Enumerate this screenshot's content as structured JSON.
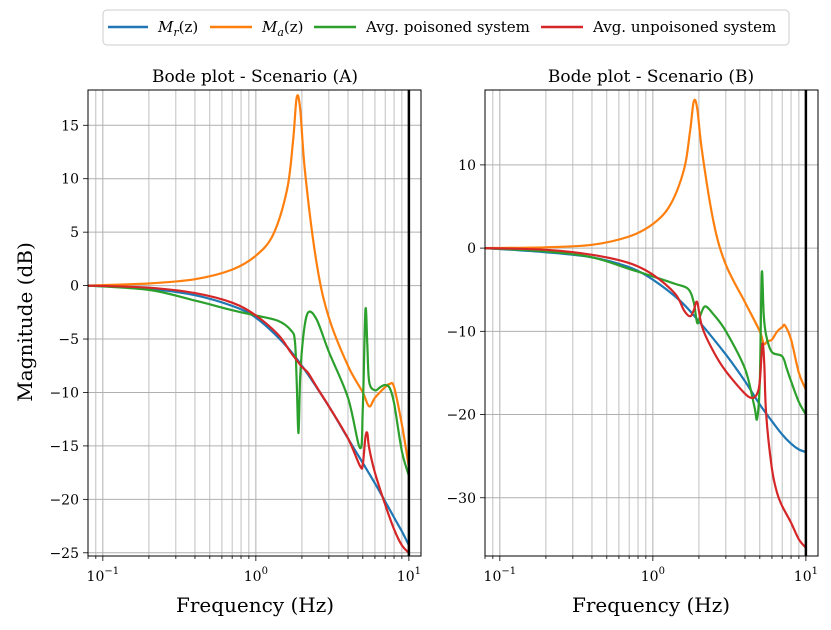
{
  "legend": {
    "entries": [
      {
        "label": "M",
        "sub": "r",
        "suffix": "(z)",
        "color": "#1f77b4"
      },
      {
        "label": "M",
        "sub": "a",
        "suffix": "(z)",
        "color": "#ff7f0e"
      },
      {
        "label": "Avg. poisoned system",
        "color": "#2ca02c"
      },
      {
        "label": "Avg. unpoisoned system",
        "color": "#d62728"
      }
    ]
  },
  "chart_data": [
    {
      "type": "line",
      "title": "Bode plot - Scenario (A)",
      "xlabel": "Frequency (Hz)",
      "ylabel": "Magnitude (dB)",
      "xscale": "log",
      "xlim": [
        0.08,
        12
      ],
      "ylim": [
        -25.3,
        18.3
      ],
      "yticks": [
        15,
        10,
        5,
        0,
        -5,
        -10,
        -15,
        -20,
        -25
      ],
      "ytick_labels": [
        "15",
        "10",
        "5",
        "0",
        "−5",
        "−10",
        "−15",
        "−20",
        "−25"
      ],
      "xticks": [
        {
          "value": 0.1,
          "base": "10",
          "exp": "−1"
        },
        {
          "value": 1,
          "base": "10",
          "exp": "0"
        },
        {
          "value": 10,
          "base": "10",
          "exp": "1"
        }
      ],
      "vline": 10,
      "series": [
        {
          "name": "Mr(z)",
          "color": "#1f77b4",
          "x": [
            0.08,
            0.2,
            0.4,
            0.7,
            1.0,
            1.5,
            2.0,
            3.0,
            4.0,
            5.0,
            6.0,
            7.0,
            8.0,
            9.0,
            10.0
          ],
          "y": [
            0,
            -0.3,
            -0.9,
            -1.9,
            -3.0,
            -5.3,
            -7.5,
            -11.3,
            -14.3,
            -16.6,
            -18.5,
            -20.2,
            -21.7,
            -23.0,
            -24.3
          ]
        },
        {
          "name": "Ma(z)",
          "color": "#ff7f0e",
          "x": [
            0.08,
            0.2,
            0.4,
            0.7,
            1.0,
            1.3,
            1.6,
            1.75,
            1.85,
            1.95,
            2.1,
            2.5,
            3.0,
            4.0,
            5.0,
            5.5,
            6.0,
            7.0,
            7.5,
            8.0,
            9.0,
            10.0
          ],
          "y": [
            0,
            0.2,
            0.6,
            1.5,
            2.8,
            4.8,
            9.0,
            13.5,
            17.6,
            16.5,
            10.5,
            2.0,
            -3.0,
            -7.5,
            -10.0,
            -11.3,
            -10.5,
            -9.5,
            -9.2,
            -9.5,
            -13.0,
            -17.0
          ]
        },
        {
          "name": "Avg. poisoned system",
          "color": "#2ca02c",
          "x": [
            0.08,
            0.2,
            0.4,
            0.7,
            1.0,
            1.4,
            1.7,
            1.8,
            1.85,
            1.9,
            1.95,
            2.05,
            2.2,
            2.5,
            3.0,
            4.0,
            4.8,
            5.0,
            5.2,
            5.35,
            5.5,
            6.0,
            6.5,
            7.0,
            7.5,
            8.0,
            9.0,
            10.0
          ],
          "y": [
            0,
            -0.4,
            -1.4,
            -2.3,
            -2.8,
            -3.3,
            -4.2,
            -5.2,
            -9.0,
            -13.8,
            -8.5,
            -4.5,
            -2.5,
            -3.2,
            -6.2,
            -10.5,
            -15.2,
            -11.5,
            -2.3,
            -5.5,
            -9.0,
            -9.8,
            -9.5,
            -9.3,
            -9.6,
            -11.0,
            -15.5,
            -17.8
          ]
        },
        {
          "name": "Avg. unpoisoned system",
          "color": "#d62728",
          "x": [
            0.08,
            0.2,
            0.4,
            0.7,
            1.0,
            1.4,
            1.7,
            1.9,
            2.0,
            2.2,
            2.5,
            3.0,
            4.0,
            4.8,
            5.0,
            5.2,
            5.35,
            5.5,
            6.0,
            7.0,
            8.0,
            9.0,
            10.0
          ],
          "y": [
            0,
            -0.2,
            -0.7,
            -1.6,
            -2.8,
            -4.6,
            -6.3,
            -7.2,
            -7.6,
            -8.2,
            -9.5,
            -11.3,
            -14.3,
            -16.9,
            -16.7,
            -14.2,
            -13.8,
            -15.2,
            -17.5,
            -20.5,
            -22.8,
            -24.3,
            -25.0
          ]
        }
      ]
    },
    {
      "type": "line",
      "title": "Bode plot - Scenario (B)",
      "xlabel": "Frequency (Hz)",
      "ylabel": "",
      "xscale": "log",
      "xlim": [
        0.08,
        12
      ],
      "ylim": [
        -37,
        19
      ],
      "yticks": [
        10,
        0,
        -10,
        -20,
        -30
      ],
      "ytick_labels": [
        "10",
        "0",
        "−10",
        "−20",
        "−30"
      ],
      "xticks": [
        {
          "value": 0.1,
          "base": "10",
          "exp": "−1"
        },
        {
          "value": 1,
          "base": "10",
          "exp": "0"
        },
        {
          "value": 10,
          "base": "10",
          "exp": "1"
        }
      ],
      "vline": 10,
      "series": [
        {
          "name": "Mr(z)",
          "color": "#1f77b4",
          "x": [
            0.08,
            0.2,
            0.4,
            0.7,
            1.0,
            1.5,
            2.0,
            3.0,
            4.0,
            5.0,
            6.0,
            7.0,
            8.0,
            9.0,
            10.0
          ],
          "y": [
            0,
            -0.5,
            -1.1,
            -2.3,
            -3.8,
            -6.3,
            -8.8,
            -12.8,
            -16.0,
            -18.8,
            -20.8,
            -22.4,
            -23.5,
            -24.2,
            -24.5
          ]
        },
        {
          "name": "Ma(z)",
          "color": "#ff7f0e",
          "x": [
            0.08,
            0.2,
            0.4,
            0.7,
            1.0,
            1.3,
            1.6,
            1.75,
            1.85,
            1.95,
            2.1,
            2.5,
            3.0,
            4.0,
            5.0,
            5.3,
            5.6,
            6.0,
            6.5,
            7.0,
            7.3,
            8.0,
            9.0,
            10.0
          ],
          "y": [
            0,
            0.1,
            0.4,
            1.4,
            2.9,
            5.2,
            9.5,
            14.0,
            17.6,
            16.8,
            11.5,
            3.0,
            -2.0,
            -6.5,
            -10.0,
            -11.5,
            -11.2,
            -11.0,
            -10.0,
            -9.5,
            -9.3,
            -11.0,
            -15.0,
            -17.0
          ]
        },
        {
          "name": "Avg. poisoned system",
          "color": "#2ca02c",
          "x": [
            0.08,
            0.2,
            0.4,
            0.7,
            1.0,
            1.4,
            1.7,
            1.85,
            1.95,
            2.05,
            2.2,
            2.5,
            3.0,
            4.0,
            4.6,
            4.8,
            5.0,
            5.15,
            5.3,
            5.5,
            6.0,
            7.0,
            7.5,
            8.0,
            9.0,
            10.0
          ],
          "y": [
            0,
            -0.4,
            -1.1,
            -2.5,
            -3.4,
            -4.3,
            -4.9,
            -6.5,
            -9.0,
            -8.0,
            -7.0,
            -8.0,
            -10.0,
            -14.5,
            -19.0,
            -20.5,
            -16.0,
            -3.0,
            -8.0,
            -10.5,
            -12.5,
            -13.0,
            -14.5,
            -16.0,
            -18.5,
            -20.0
          ]
        },
        {
          "name": "Avg. unpoisoned system",
          "color": "#d62728",
          "x": [
            0.08,
            0.2,
            0.4,
            0.7,
            1.0,
            1.4,
            1.6,
            1.75,
            1.85,
            1.95,
            2.1,
            2.5,
            3.0,
            4.0,
            4.5,
            4.8,
            5.0,
            5.2,
            5.35,
            5.5,
            6.0,
            6.5,
            7.0,
            8.0,
            9.0,
            10.0
          ],
          "y": [
            0,
            -0.2,
            -0.8,
            -1.8,
            -3.2,
            -5.5,
            -7.5,
            -8.2,
            -7.5,
            -6.5,
            -9.5,
            -12.5,
            -14.8,
            -17.5,
            -18.0,
            -17.5,
            -16.0,
            -11.5,
            -14.0,
            -20.0,
            -26.5,
            -29.5,
            -31.0,
            -33.0,
            -35.0,
            -36.0
          ]
        }
      ]
    }
  ]
}
